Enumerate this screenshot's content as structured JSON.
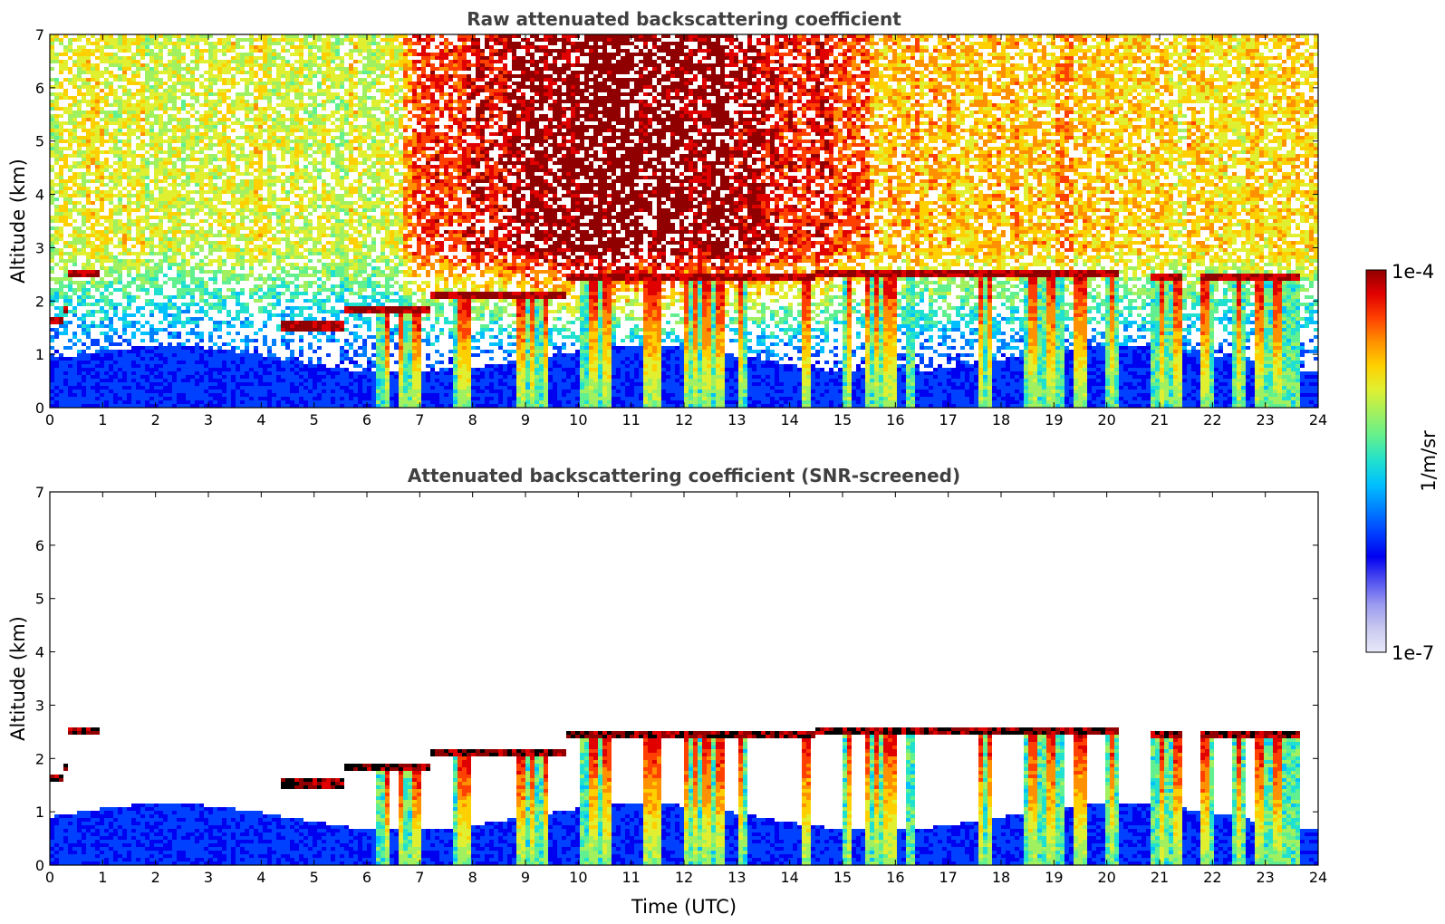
{
  "chart_data": [
    {
      "type": "heatmap",
      "title": "Raw attenuated backscattering coefficient",
      "xlabel": "",
      "ylabel": "Altitude (km)",
      "xlim": [
        0,
        24
      ],
      "ylim": [
        0,
        7
      ],
      "xticks": [
        "0",
        "1",
        "2",
        "3",
        "4",
        "5",
        "6",
        "7",
        "8",
        "9",
        "10",
        "11",
        "12",
        "13",
        "14",
        "15",
        "16",
        "17",
        "18",
        "19",
        "20",
        "21",
        "22",
        "23",
        "24"
      ],
      "yticks": [
        "0",
        "1",
        "2",
        "3",
        "4",
        "5",
        "6",
        "7"
      ],
      "screened": false,
      "cloud_base_km": [
        {
          "t0": 0.0,
          "t1": 0.3,
          "top": 1.7
        },
        {
          "t0": 0.3,
          "t1": 0.8,
          "top": 1.9
        },
        {
          "t0": 0.35,
          "t1": 0.95,
          "top": 2.6
        },
        {
          "t0": 4.4,
          "t1": 5.6,
          "top": 1.6
        },
        {
          "t0": 5.6,
          "t1": 7.2,
          "top": 1.9
        },
        {
          "t0": 7.2,
          "t1": 9.8,
          "top": 2.2
        },
        {
          "t0": 9.8,
          "t1": 12.0,
          "top": 2.5
        },
        {
          "t0": 12.0,
          "t1": 14.6,
          "top": 2.5
        },
        {
          "t0": 14.5,
          "t1": 16.5,
          "top": 2.6
        },
        {
          "t0": 16.5,
          "t1": 20.2,
          "top": 2.6
        },
        {
          "t0": 20.8,
          "t1": 21.4,
          "top": 2.5
        },
        {
          "t0": 21.8,
          "t1": 23.7,
          "top": 2.5
        }
      ]
    },
    {
      "type": "heatmap",
      "title": "Attenuated backscattering coefficient (SNR-screened)",
      "xlabel": "Time (UTC)",
      "ylabel": "Altitude (km)",
      "xlim": [
        0,
        24
      ],
      "ylim": [
        0,
        7
      ],
      "xticks": [
        "0",
        "1",
        "2",
        "3",
        "4",
        "5",
        "6",
        "7",
        "8",
        "9",
        "10",
        "11",
        "12",
        "13",
        "14",
        "15",
        "16",
        "17",
        "18",
        "19",
        "20",
        "21",
        "22",
        "23",
        "24"
      ],
      "yticks": [
        "0",
        "1",
        "2",
        "3",
        "4",
        "5",
        "6",
        "7"
      ],
      "screened": true
    }
  ],
  "colorbar": {
    "label": "1/m/sr",
    "max_label": "1e-4",
    "min_label": "1e-7",
    "colors": [
      "#e8e8f8",
      "#c8c8f0",
      "#9a9af0",
      "#5050f0",
      "#0000f0",
      "#0040ff",
      "#0080ff",
      "#00c0ff",
      "#20e0d0",
      "#60f090",
      "#a0f060",
      "#e0f030",
      "#ffd000",
      "#ff9000",
      "#ff4000",
      "#e00000",
      "#900000"
    ]
  }
}
